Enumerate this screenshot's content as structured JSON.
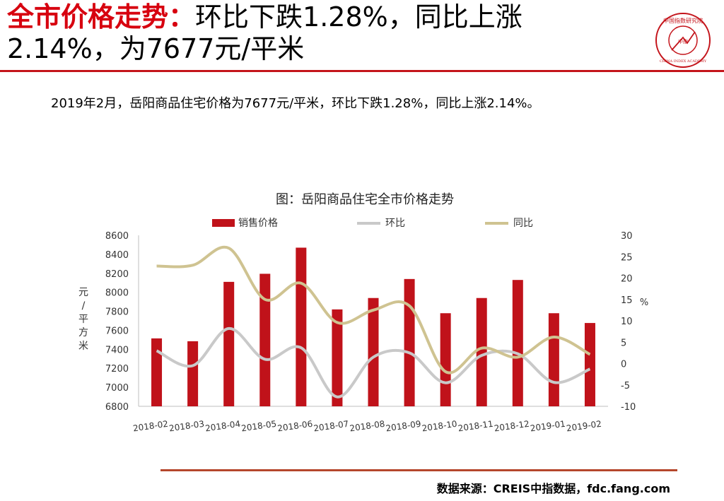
{
  "header": {
    "title_highlight": "全市价格走势：",
    "title_line1_rest": "环比下跌1.28%，同比上涨",
    "title_line2": "2.14%，为7677元/平米"
  },
  "logo": {
    "ring_text": "中国指数研究院",
    "center_text": "中指",
    "english_text": "CHINA INDEX ACADEMY"
  },
  "summary": "2019年2月，岳阳商品住宅价格为7677元/平米，环比下跌1.28%，同比上涨2.14%。",
  "source": "数据来源：CREIS中指数据，fdc.fang.com",
  "colors": {
    "accent_red": "#d7000f",
    "bar": "#c0121a",
    "mom_line": "#c9c9c9",
    "yoy_line": "#cfc391",
    "bottom_rule": "#b5472c"
  },
  "chart_data": {
    "type": "bar",
    "title": "图：岳阳商品住宅全市价格走势",
    "categories": [
      "2018-02",
      "2018-03",
      "2018-04",
      "2018-05",
      "2018-06",
      "2018-07",
      "2018-08",
      "2018-09",
      "2018-10",
      "2018-11",
      "2018-12",
      "2019-01",
      "2019-02"
    ],
    "series": [
      {
        "name": "销售价格",
        "type": "bar",
        "axis": "left",
        "values": [
          7515,
          7485,
          8110,
          8195,
          8470,
          7820,
          7940,
          8140,
          7780,
          7940,
          8130,
          7780,
          7677
        ]
      },
      {
        "name": "环比",
        "type": "line",
        "axis": "right",
        "values": [
          3,
          -0.5,
          8.2,
          1,
          3.7,
          -7.8,
          1.5,
          2.5,
          -4.5,
          1.9,
          2.3,
          -4.4,
          -1.28
        ]
      },
      {
        "name": "同比",
        "type": "line",
        "axis": "right",
        "values": [
          22.8,
          23,
          27,
          15,
          18.8,
          9.6,
          12.5,
          13.5,
          -1.9,
          3.6,
          1.5,
          6.2,
          2.14
        ]
      }
    ],
    "ylabel": "元/平方米",
    "ylabel_right": "%",
    "ylim": [
      6800,
      8600
    ],
    "yticks": [
      6800,
      7000,
      7200,
      7400,
      7600,
      7800,
      8000,
      8200,
      8400,
      8600
    ],
    "ylim_right": [
      -10,
      30
    ],
    "yticks_right": [
      -10,
      -5,
      0,
      5,
      10,
      15,
      20,
      25,
      30
    ],
    "grid": false,
    "legend": "top"
  }
}
